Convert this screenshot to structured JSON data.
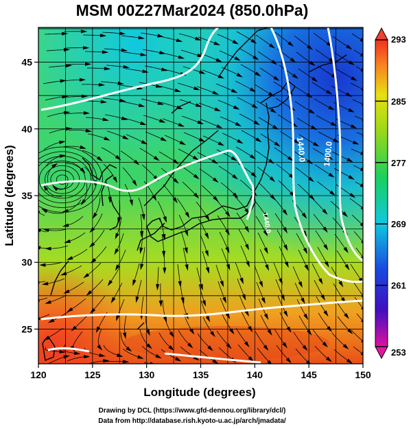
{
  "title": "MSM 00Z27Mar2024 (850.0hPa)",
  "map": {
    "xlabel": "Longitude (degrees)",
    "ylabel": "Latitude  (degrees)",
    "x_ticks": [
      "120",
      "125",
      "130",
      "135",
      "140",
      "145",
      "150"
    ],
    "y_ticks": [
      "25",
      "30",
      "35",
      "40",
      "45"
    ],
    "xlim": [
      120,
      150
    ],
    "ylim": [
      22.4,
      47.6
    ],
    "contour_labels": [
      "1440.0",
      "1400.0",
      "1440.0"
    ]
  },
  "colorbar": {
    "ticks": [
      "293",
      "285",
      "277",
      "269",
      "261",
      "253"
    ],
    "range": [
      253,
      293
    ],
    "colors": [
      "#e0108c",
      "#2020c0",
      "#1e78e8",
      "#10c8d8",
      "#18d060",
      "#88d018",
      "#e8e010",
      "#f89020",
      "#f03018"
    ]
  },
  "credits": {
    "line1": "Drawing by DCL (https://www.gfd-dennou.org/library/dcl/)",
    "line2": "Data from http://database.rish.kyoto-u.ac.jp/arch/jmadata/"
  }
}
